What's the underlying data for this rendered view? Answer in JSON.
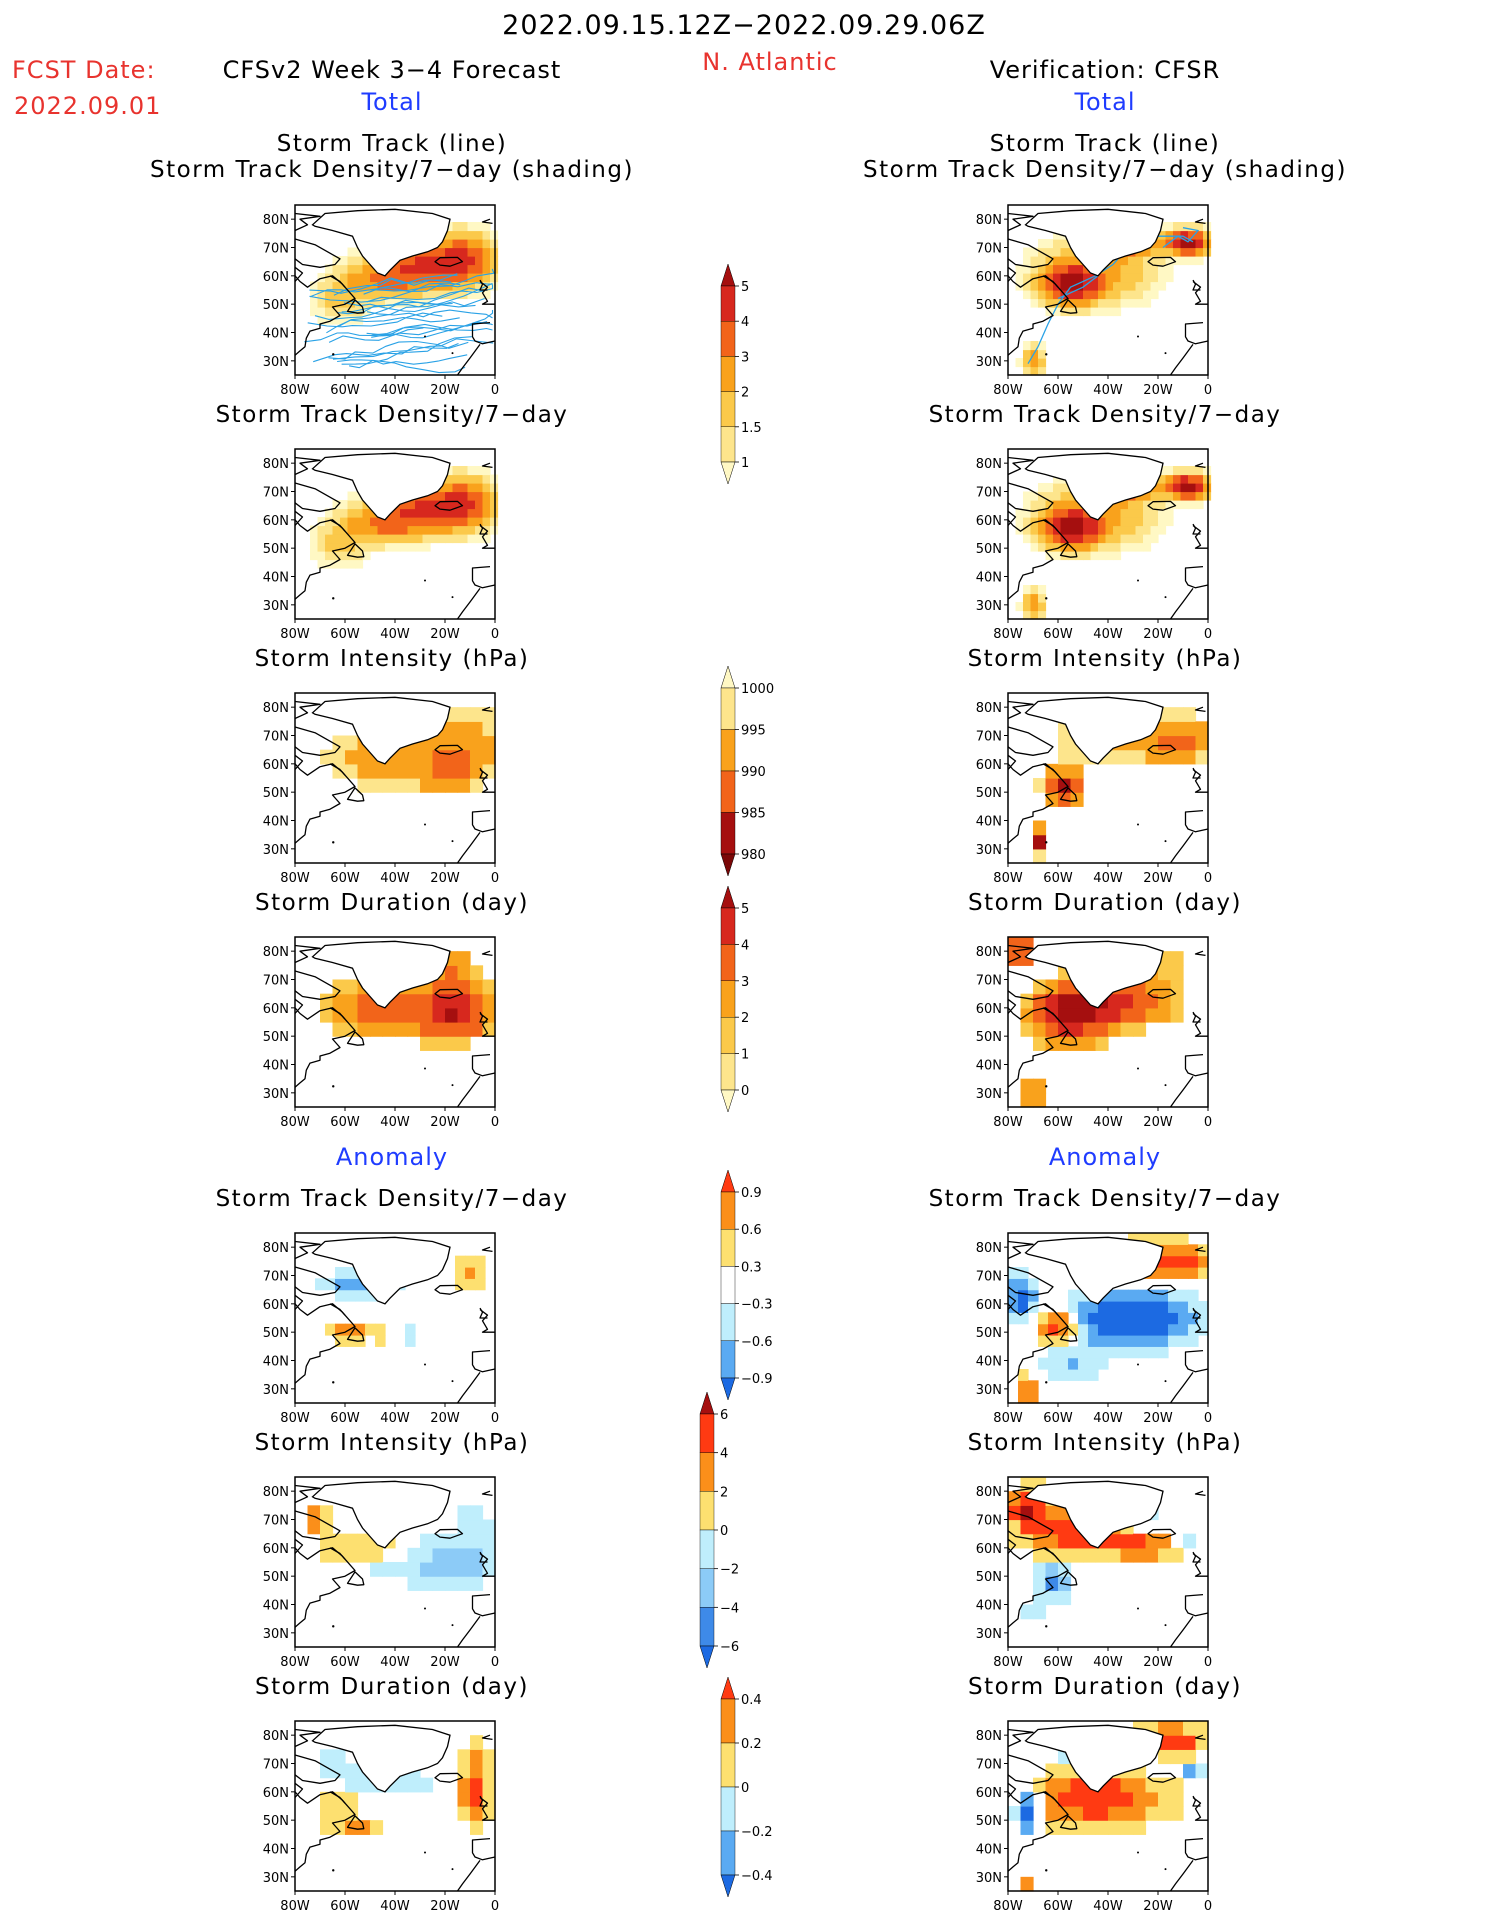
{
  "header": {
    "period": "2022.09.15.12Z−2022.09.29.06Z",
    "region": "N. Atlantic",
    "fcst_label": "FCST Date:",
    "fcst_date": "2022.09.01",
    "left_title": "CFSv2 Week 3−4 Forecast",
    "right_title": "Verification: CFSR",
    "total_left": "Total",
    "total_right": "Total",
    "anomaly_left": "Anomaly",
    "anomaly_right": "Anomaly"
  },
  "panel_titles": {
    "track_line": "Storm Track (line)",
    "track_shading": "Storm Track Density/7−day (shading)",
    "density": "Storm Track Density/7−day",
    "intensity": "Storm Intensity (hPa)",
    "duration": "Storm Duration (day)"
  },
  "chart_data": {
    "type": "heatmap",
    "axes": {
      "lon_ticks": [
        "80W",
        "60W",
        "40W",
        "20W",
        "0"
      ],
      "lat_ticks": [
        "80N",
        "70N",
        "60N",
        "50N",
        "40N",
        "30N"
      ],
      "lon_range": [
        -80,
        0
      ],
      "lat_range": [
        25,
        85
      ]
    },
    "colorbars": [
      {
        "name": "density_total",
        "labels": [
          "5",
          "4",
          "3",
          "2",
          "1.5",
          "1"
        ],
        "colors": [
          "#a50f0f",
          "#d7281e",
          "#f2641a",
          "#f9a21c",
          "#fbc94a",
          "#fde58c",
          "#fff8c4"
        ]
      },
      {
        "name": "intensity_total",
        "labels": [
          "1000",
          "995",
          "990",
          "985",
          "980"
        ],
        "colors": [
          "#fff8c4",
          "#fde58c",
          "#f9a21c",
          "#f2641a",
          "#a50f0f",
          "#7a0707"
        ]
      },
      {
        "name": "duration_total",
        "labels": [
          "5",
          "4",
          "3",
          "2",
          "1",
          "0"
        ],
        "colors": [
          "#a50f0f",
          "#d7281e",
          "#f2641a",
          "#f9a21c",
          "#fbc94a",
          "#fde58c",
          "#fff8c4"
        ]
      },
      {
        "name": "density_anomaly",
        "labels": [
          "0.9",
          "0.6",
          "0.3",
          "−0.3",
          "−0.6",
          "−0.9"
        ],
        "colors": [
          "#ff3a12",
          "#fb8f1a",
          "#fde070",
          "#ffffff",
          "#bfeefc",
          "#5aaaf2",
          "#1c6ae2"
        ]
      },
      {
        "name": "intensity_anomaly",
        "labels": [
          "6",
          "4",
          "2",
          "0",
          "−2",
          "−4",
          "−6"
        ],
        "colors": [
          "#a50f0f",
          "#ff3a12",
          "#fb8f1a",
          "#fde070",
          "#bfeefc",
          "#8ccbf7",
          "#3e8ae8",
          "#1c6ae2"
        ]
      },
      {
        "name": "duration_anomaly",
        "labels": [
          "0.4",
          "0.2",
          "0",
          "−0.2",
          "−0.4"
        ],
        "colors": [
          "#ff3a12",
          "#fb8f1a",
          "#fde070",
          "#bfeefc",
          "#5aaaf2",
          "#1c6ae2"
        ]
      }
    ]
  }
}
